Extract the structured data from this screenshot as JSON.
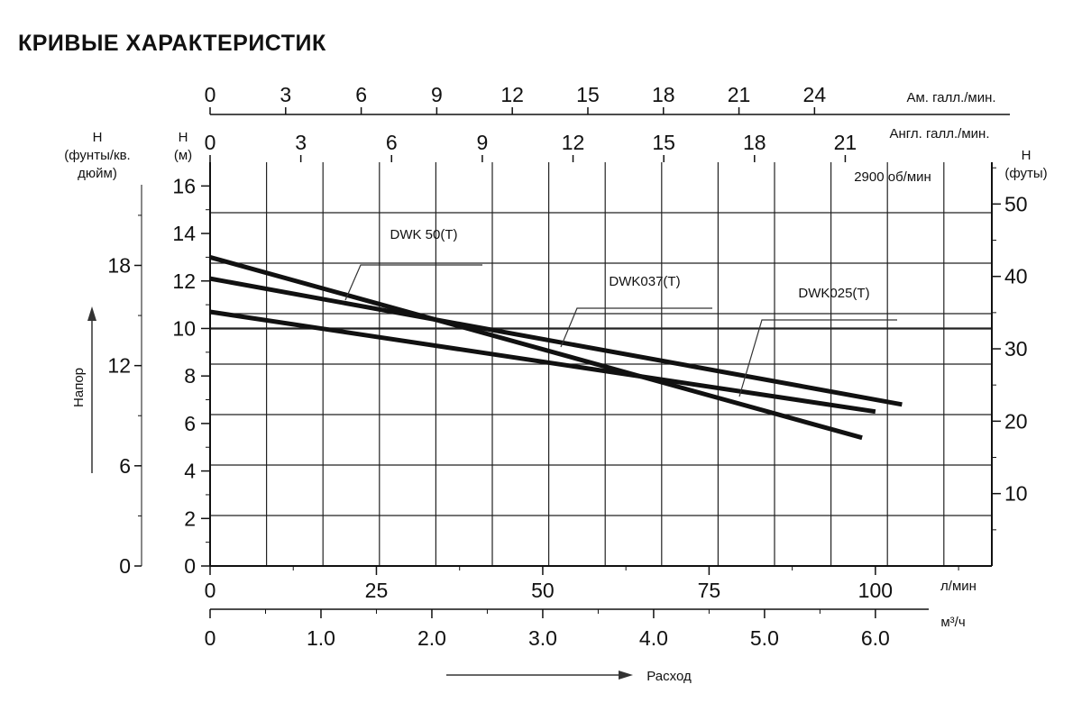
{
  "title": "КРИВЫЕ ХАРАКТЕРИСТИК",
  "chart_data": {
    "type": "line",
    "speed_note": "2900 об/мин",
    "x_primary": {
      "label": "л/мин",
      "range": [
        0,
        100
      ],
      "ticks": [
        0,
        25,
        50,
        75,
        100
      ]
    },
    "x_m3h": {
      "label": "м³/ч",
      "ticks": [
        "0",
        "1.0",
        "2.0",
        "3.0",
        "4.0",
        "5.0",
        "6.0"
      ]
    },
    "x_us_gpm": {
      "label": "Ам. галл./мин.",
      "ticks": [
        0,
        3,
        6,
        9,
        12,
        15,
        18,
        21,
        24
      ]
    },
    "x_imp_gpm": {
      "label": "Англ. галл./мин.",
      "ticks": [
        0,
        3,
        6,
        9,
        12,
        15,
        18,
        21
      ]
    },
    "y_m": {
      "label": "H\n(м)",
      "range": [
        0,
        17
      ],
      "ticks": [
        0,
        2,
        4,
        6,
        8,
        10,
        12,
        14,
        16
      ]
    },
    "y_psi": {
      "label": "H\n(фунты/кв.\nдюйм)",
      "ticks": [
        0,
        6,
        12,
        18
      ]
    },
    "y_ft": {
      "label": "H\n(футы)",
      "ticks": [
        10,
        20,
        30,
        40,
        50
      ]
    },
    "flow_label": "Расход",
    "head_label": "Напор",
    "reference_line_m": 10,
    "series": [
      {
        "name": "DWK 50(T)",
        "points": [
          [
            0,
            13.0
          ],
          [
            98,
            5.4
          ]
        ]
      },
      {
        "name": "DWK037(T)",
        "points": [
          [
            0,
            12.1
          ],
          [
            104,
            6.8
          ]
        ]
      },
      {
        "name": "DWK025(T)",
        "points": [
          [
            0,
            10.7
          ],
          [
            100,
            6.5
          ]
        ]
      }
    ]
  }
}
